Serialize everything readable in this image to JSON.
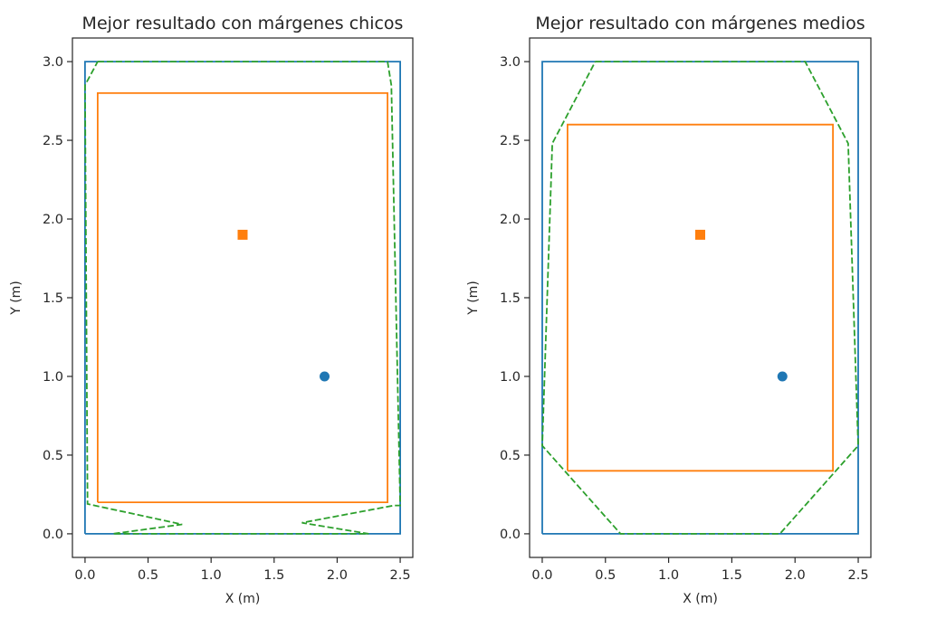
{
  "colors": {
    "blue": "#1f77b4",
    "orange": "#ff7f0e",
    "green": "#2ca02c",
    "axis": "#262626"
  },
  "chart_data": [
    {
      "type": "line",
      "title": "Mejor resultado con márgenes chicos",
      "xlabel": "X (m)",
      "ylabel": "Y (m)",
      "xlim": [
        -0.1,
        2.6
      ],
      "ylim": [
        -0.15,
        3.15
      ],
      "xticks": [
        "0.0",
        "0.5",
        "1.0",
        "1.5",
        "2.0",
        "2.5"
      ],
      "xtick_values": [
        0,
        0.5,
        1.0,
        1.5,
        2.0,
        2.5
      ],
      "yticks": [
        "0.0",
        "0.5",
        "1.0",
        "1.5",
        "2.0",
        "2.5",
        "3.0"
      ],
      "ytick_values": [
        0,
        0.5,
        1.0,
        1.5,
        2.0,
        2.5,
        3.0
      ],
      "grid": false,
      "series": [
        {
          "style": "solid",
          "color": "blue",
          "x": [
            0,
            2.5,
            2.5,
            0,
            0
          ],
          "y": [
            0,
            0,
            3.0,
            3.0,
            0
          ]
        },
        {
          "style": "solid",
          "color": "orange",
          "x": [
            0.1,
            2.4,
            2.4,
            0.1,
            0.1
          ],
          "y": [
            0.2,
            0.2,
            2.8,
            2.8,
            0.2
          ]
        },
        {
          "style": "dashed",
          "color": "green",
          "x": [
            0.1,
            2.4,
            2.43,
            2.5,
            2.45,
            1.72,
            2.25,
            0.22,
            0.77,
            0.02,
            0.0,
            0.1
          ],
          "y": [
            3.0,
            3.0,
            2.85,
            0.18,
            0.18,
            0.07,
            0.0,
            0.0,
            0.06,
            0.19,
            2.85,
            3.0
          ]
        }
      ],
      "points": [
        {
          "x": 1.9,
          "y": 1.0,
          "marker": "circle",
          "color": "blue"
        },
        {
          "x": 1.25,
          "y": 1.9,
          "marker": "square",
          "color": "orange"
        }
      ]
    },
    {
      "type": "line",
      "title": "Mejor resultado con márgenes medios",
      "xlabel": "X (m)",
      "ylabel": "Y (m)",
      "xlim": [
        -0.1,
        2.6
      ],
      "ylim": [
        -0.15,
        3.15
      ],
      "xticks": [
        "0.0",
        "0.5",
        "1.0",
        "1.5",
        "2.0",
        "2.5"
      ],
      "xtick_values": [
        0,
        0.5,
        1.0,
        1.5,
        2.0,
        2.5
      ],
      "yticks": [
        "0.0",
        "0.5",
        "1.0",
        "1.5",
        "2.0",
        "2.5",
        "3.0"
      ],
      "ytick_values": [
        0,
        0.5,
        1.0,
        1.5,
        2.0,
        2.5,
        3.0
      ],
      "grid": false,
      "series": [
        {
          "style": "solid",
          "color": "blue",
          "x": [
            0,
            2.5,
            2.5,
            0,
            0
          ],
          "y": [
            0,
            0,
            3.0,
            3.0,
            0
          ]
        },
        {
          "style": "solid",
          "color": "orange",
          "x": [
            0.2,
            2.3,
            2.3,
            0.2,
            0.2
          ],
          "y": [
            0.4,
            0.4,
            2.6,
            2.6,
            0.4
          ]
        },
        {
          "style": "dashed",
          "color": "green",
          "x": [
            0.42,
            2.08,
            2.42,
            2.5,
            2.5,
            1.88,
            0.62,
            0.0,
            0.0,
            0.08,
            0.42
          ],
          "y": [
            3.0,
            3.0,
            2.48,
            0.56,
            0.56,
            0.0,
            0.0,
            0.56,
            0.56,
            2.48,
            3.0
          ]
        }
      ],
      "points": [
        {
          "x": 1.9,
          "y": 1.0,
          "marker": "circle",
          "color": "blue"
        },
        {
          "x": 1.25,
          "y": 1.9,
          "marker": "square",
          "color": "orange"
        }
      ]
    }
  ]
}
